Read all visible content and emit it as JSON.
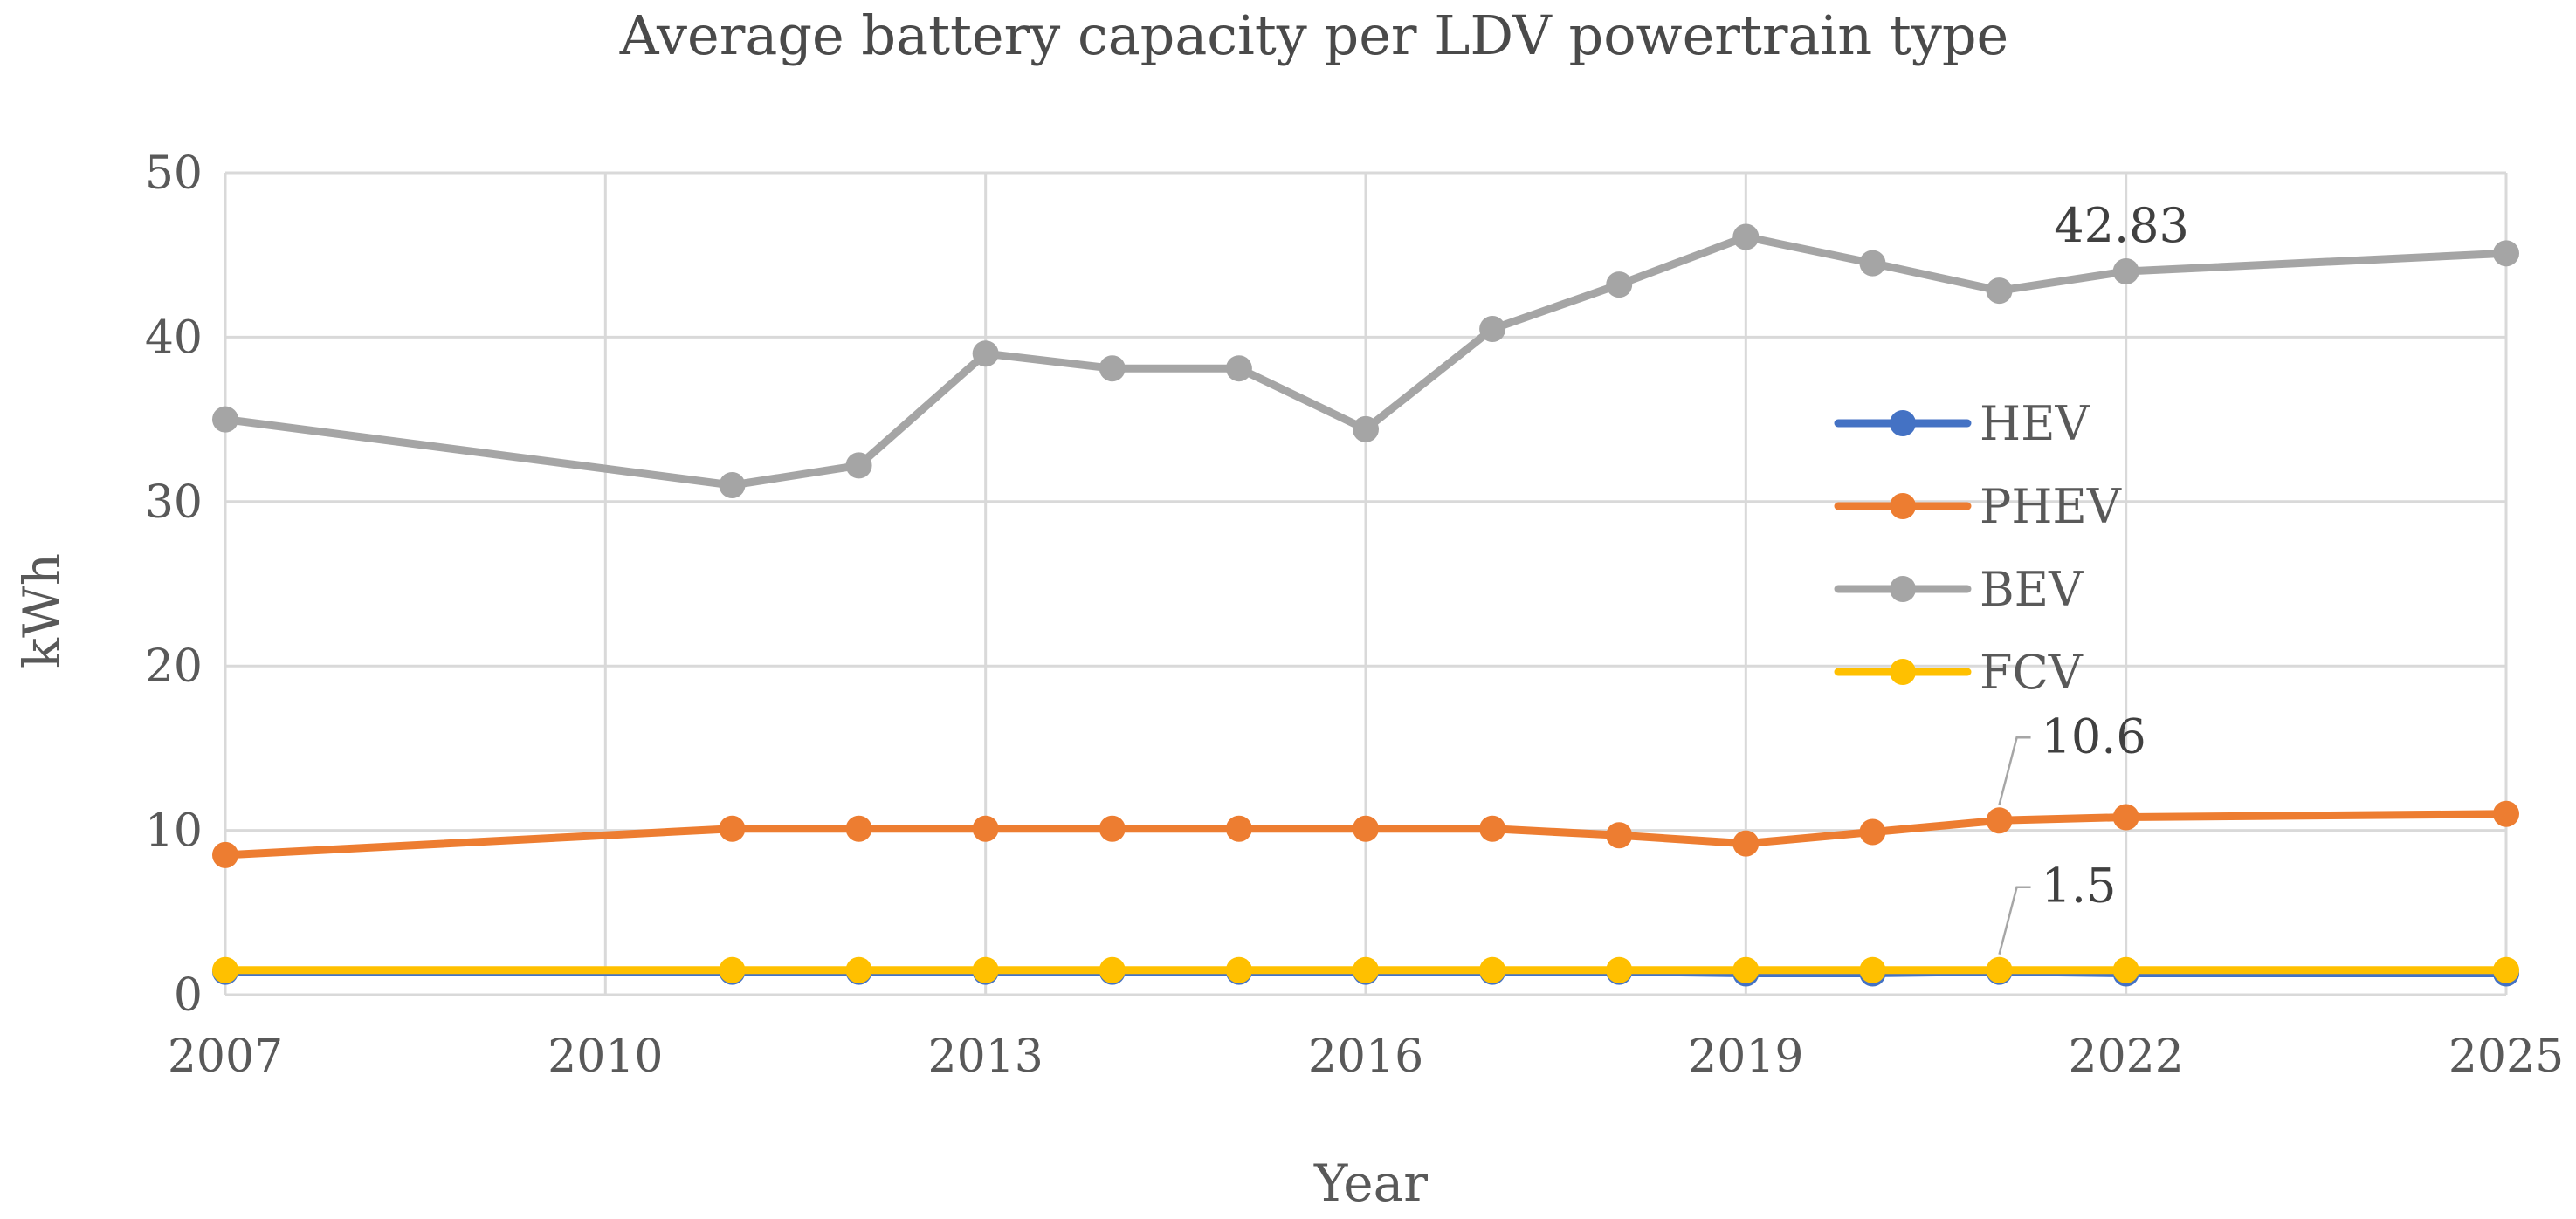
{
  "chart_data": {
    "type": "line",
    "title": "Average battery capacity per LDV powertrain type",
    "xlabel": "Year",
    "ylabel": "kWh",
    "xlim": [
      2007,
      2025
    ],
    "ylim": [
      0,
      50
    ],
    "x_ticks": [
      "2007",
      "2010",
      "2013",
      "2016",
      "2019",
      "2022",
      "2025"
    ],
    "y_ticks": [
      "0",
      "10",
      "20",
      "30",
      "40",
      "50"
    ],
    "grid": true,
    "legend_position": "right, inside plot",
    "x": [
      2007,
      2011,
      2012,
      2013,
      2014,
      2015,
      2016,
      2017,
      2018,
      2019,
      2020,
      2021,
      2022,
      2025
    ],
    "series": [
      {
        "name": "HEV",
        "color": "#4472C4",
        "values": [
          1.4,
          1.4,
          1.4,
          1.4,
          1.4,
          1.4,
          1.4,
          1.4,
          1.4,
          1.3,
          1.3,
          1.4,
          1.3,
          1.3
        ]
      },
      {
        "name": "PHEV",
        "color": "#ED7D31",
        "values": [
          8.5,
          10.1,
          10.1,
          10.1,
          10.1,
          10.1,
          10.1,
          10.1,
          9.7,
          9.2,
          9.9,
          10.6,
          10.8,
          11.0
        ]
      },
      {
        "name": "BEV",
        "color": "#A5A5A5",
        "values": [
          35.0,
          31.0,
          32.2,
          39.0,
          38.1,
          38.1,
          34.4,
          40.5,
          43.2,
          46.1,
          44.5,
          42.83,
          44.0,
          45.1
        ]
      },
      {
        "name": "FCV",
        "color": "#FFC000",
        "values": [
          1.5,
          1.5,
          1.5,
          1.5,
          1.5,
          1.5,
          1.5,
          1.5,
          1.5,
          1.5,
          1.5,
          1.5,
          1.5,
          1.5
        ]
      }
    ],
    "annotations": [
      {
        "series": "BEV",
        "x": 2021,
        "text": "42.83"
      },
      {
        "series": "PHEV",
        "x": 2021,
        "text": "10.6"
      },
      {
        "series": "FCV",
        "x": 2021,
        "text": "1.5"
      }
    ]
  }
}
